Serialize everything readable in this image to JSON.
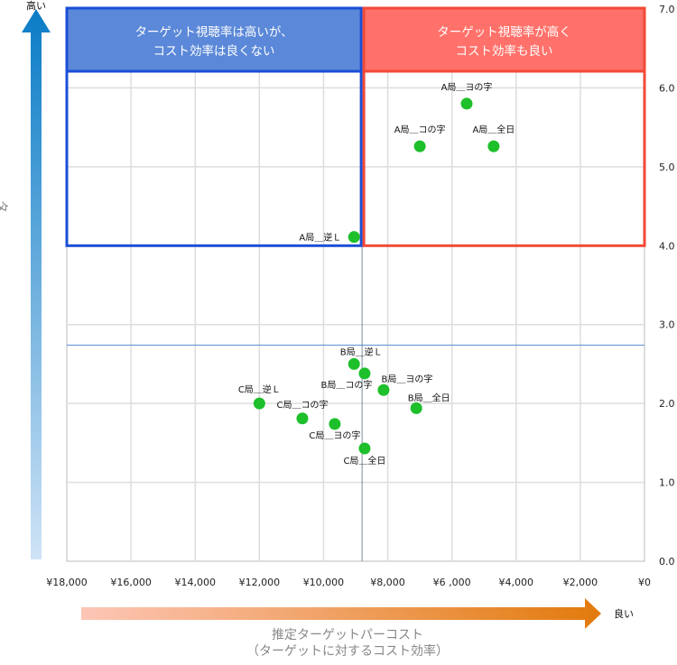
{
  "chart_data": {
    "type": "scatter",
    "xlabel": "推定ターゲットパーコスト",
    "xlabel_sub": "（ターゲットに対するコスト効率）",
    "ylabel": "ターゲットの平均視聴率",
    "y_arrow_label": "高い",
    "x_arrow_label": "良い",
    "xlim": [
      18000,
      0
    ],
    "ylim": [
      0,
      7
    ],
    "x_reversed": true,
    "grid": true,
    "x_ticks": [
      "¥18,000",
      "¥16,000",
      "¥14,000",
      "¥12,000",
      "¥10,000",
      "¥8,000",
      "¥6 ,000",
      "¥4,000",
      "¥2,000",
      "¥0"
    ],
    "y_ticks": [
      "0.0",
      "1.0",
      "2.0",
      "3.0",
      "4.0",
      "5.0",
      "6.0",
      "7.0"
    ],
    "reference_lines": {
      "x": 8800,
      "y": 2.74
    },
    "quadrants": [
      {
        "text_line1": "ターゲット視聴率は高いが、",
        "text_line2": "コスト効率は良くない",
        "x_range": [
          18000,
          8800
        ],
        "y_range": [
          4.0,
          7.0
        ],
        "color": "#1a4fd6",
        "fill": "#5b88d8"
      },
      {
        "text_line1": "ターゲット視聴率が高く",
        "text_line2": "コスト効率も良い",
        "x_range": [
          8800,
          0
        ],
        "y_range": [
          4.0,
          7.0
        ],
        "color": "#f24a36",
        "fill": "#ff716a"
      }
    ],
    "point_color": "#1dbf2a",
    "points": [
      {
        "label": "A局＿ヨの字",
        "x": 5540,
        "y": 5.8
      },
      {
        "label": "A局＿コの字",
        "x": 7000,
        "y": 5.26
      },
      {
        "label": "A局＿全日",
        "x": 4700,
        "y": 5.26
      },
      {
        "label": "A局＿逆Ｌ",
        "x": 9050,
        "y": 4.11
      },
      {
        "label": "B局＿逆Ｌ",
        "x": 9050,
        "y": 2.5
      },
      {
        "label": "B局＿コの字",
        "x": 8720,
        "y": 2.38
      },
      {
        "label": "B局＿ヨの字",
        "x": 8130,
        "y": 2.17
      },
      {
        "label": "B局＿全日",
        "x": 7110,
        "y": 1.94
      },
      {
        "label": "C局＿逆Ｌ",
        "x": 12000,
        "y": 2.0
      },
      {
        "label": "C局＿コの字",
        "x": 10660,
        "y": 1.81
      },
      {
        "label": "C局＿ヨの字",
        "x": 9650,
        "y": 1.74
      },
      {
        "label": "C局＿全日",
        "x": 8720,
        "y": 1.43
      }
    ]
  }
}
